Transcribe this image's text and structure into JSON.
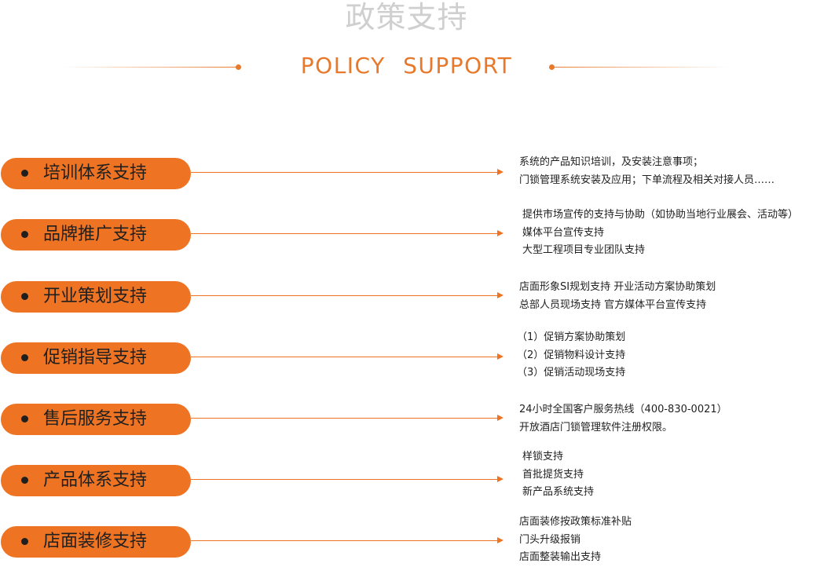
{
  "header": {
    "title_cn": "政策支持",
    "title_en": "POLICY  SUPPORT"
  },
  "colors": {
    "accent": "#ee7423",
    "title_gray": "#cfcfcf",
    "text": "#1f1f1f"
  },
  "items": [
    {
      "label": "培训体系支持",
      "lines": [
        "系统的产品知识培训，及安装注意事项；",
        "门锁管理系统安装及应用；下单流程及相关对接人员……"
      ]
    },
    {
      "label": "品牌推广支持",
      "lines": [
        "提供市场宣传的支持与协助（如协助当地行业展会、活动等）",
        "媒体平台宣传支持",
        "大型工程项目专业团队支持"
      ]
    },
    {
      "label": "开业策划支持",
      "lines": [
        "店面形象SI规划支持 开业活动方案协助策划",
        "总部人员现场支持 官方媒体平台宣传支持"
      ]
    },
    {
      "label": "促销指导支持",
      "lines": [
        "（1）促销方案协助策划",
        "（2）促销物料设计支持",
        "（3）促销活动现场支持"
      ]
    },
    {
      "label": "售后服务支持",
      "lines": [
        "24小时全国客户服务热线（400-830-0021）",
        "开放酒店门锁管理软件注册权限。"
      ]
    },
    {
      "label": "产品体系支持",
      "lines": [
        "样锁支持",
        "首批提货支持",
        "新产品系统支持"
      ]
    },
    {
      "label": "店面装修支持",
      "lines": [
        "店面装修按政策标准补贴",
        "门头升级报销",
        "店面整装输出支持"
      ]
    }
  ]
}
